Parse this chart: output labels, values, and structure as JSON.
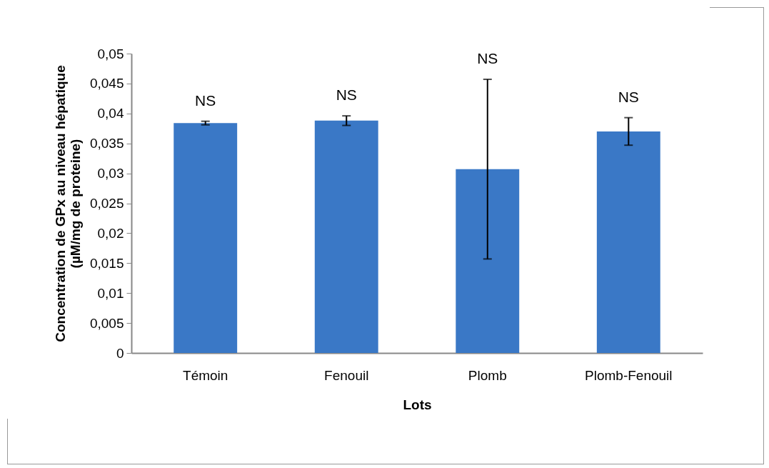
{
  "chart_data": {
    "type": "bar",
    "xlabel": "Lots",
    "ylabel": "Concentration de GPx au niveau hépatique\n(µM/mg de proteine)",
    "categories": [
      "Témoin",
      "Fenouil",
      "Plomb",
      "Plomb-Fenouil"
    ],
    "values": [
      0.0384,
      0.0388,
      0.0307,
      0.037
    ],
    "errors": [
      0.0003,
      0.0008,
      0.015,
      0.0023
    ],
    "color": "#3a78c6",
    "ylim": [
      0,
      0.05
    ],
    "yticks": [
      0,
      {
        "value": 0.005,
        "label": "0,005"
      },
      {
        "value": 0.01,
        "label": "0,01"
      },
      {
        "value": 0.015,
        "label": "0,015"
      },
      {
        "value": 0.02,
        "label": "0,02"
      },
      {
        "value": 0.025,
        "label": "0,025"
      },
      {
        "value": 0.03,
        "label": "0,03"
      },
      {
        "value": 0.035,
        "label": "0,035"
      },
      {
        "value": 0.04,
        "label": "0,04"
      },
      {
        "value": 0.045,
        "label": "0,045"
      },
      {
        "value": 0.05,
        "label": "0,05"
      }
    ],
    "annotations": [
      {
        "text": "NS",
        "x": "Témoin",
        "y": 0.0387
      },
      {
        "text": "NS",
        "x": "Fenouil",
        "y": 0.0396
      },
      {
        "text": "NS",
        "x": "Plomb",
        "y": 0.0457
      },
      {
        "text": "NS",
        "x": "Plomb-Fenouil",
        "y": 0.0393
      }
    ],
    "grid": false
  }
}
